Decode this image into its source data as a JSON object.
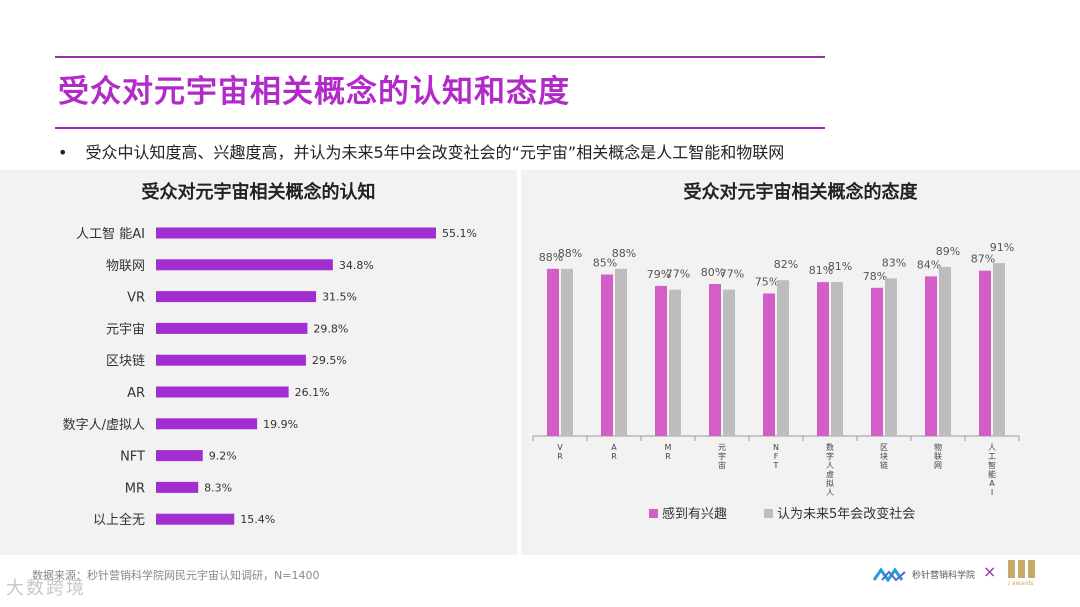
{
  "header": {
    "title": "受众对元宇宙相关概念的认知和态度",
    "bullet_marker": "•",
    "bullet": "受众中认知度高、兴趣度高，并认为未来5年中会改变社会的“元宇宙”相关概念是人工智能和物联网"
  },
  "colors": {
    "accent": "#b22ac8",
    "bar_purple": "#a12fd0",
    "bar_pink": "#d35fc6",
    "bar_gray": "#bdbdbd"
  },
  "chart_data": [
    {
      "type": "bar",
      "orientation": "horizontal",
      "title": "受众对元宇宙相关概念的认知",
      "categories": [
        "人工智 能AI",
        "物联网",
        "VR",
        "元宇宙",
        "区块链",
        "AR",
        "数字人/虚拟人",
        "NFT",
        "MR",
        "以上全无"
      ],
      "values": [
        55.1,
        34.8,
        31.5,
        29.8,
        29.5,
        26.1,
        19.9,
        9.2,
        8.3,
        15.4
      ],
      "value_labels": [
        "55.1%",
        "34.8%",
        "31.5%",
        "29.8%",
        "29.5%",
        "26.1%",
        "19.9%",
        "9.2%",
        "8.3%",
        "15.4%"
      ],
      "xlim": [
        0,
        55.1
      ]
    },
    {
      "type": "bar",
      "orientation": "vertical",
      "title": "受众对元宇宙相关概念的态度",
      "categories": [
        "VR",
        "AR",
        "MR",
        "元宇宙",
        "NFT",
        "数字人虚拟人",
        "区块链",
        "物联网",
        "人工智能AI"
      ],
      "series": [
        {
          "name": "感到有兴趣",
          "values": [
            88,
            85,
            79,
            80,
            75,
            81,
            78,
            84,
            87
          ],
          "labels": [
            "88%",
            "85%",
            "79%",
            "80%",
            "75%",
            "81%",
            "78%",
            "84%",
            "87%"
          ]
        },
        {
          "name": "认为未来5年会改变社会",
          "values": [
            88,
            88,
            77,
            77,
            82,
            81,
            83,
            89,
            91
          ],
          "labels": [
            "88%",
            "88%",
            "77%",
            "77%",
            "82%",
            "81%",
            "83%",
            "89%",
            "91%"
          ]
        }
      ],
      "ylim": [
        0,
        100
      ],
      "legend": "bottom"
    }
  ],
  "footer": {
    "source": "数据来源：秒针营销科学院网民元宇宙认知调研，N=1400",
    "watermark": "大数跨境",
    "logo_text": "秒针营销科学院",
    "separator": "×",
    "eci_sub": "/ awards"
  }
}
